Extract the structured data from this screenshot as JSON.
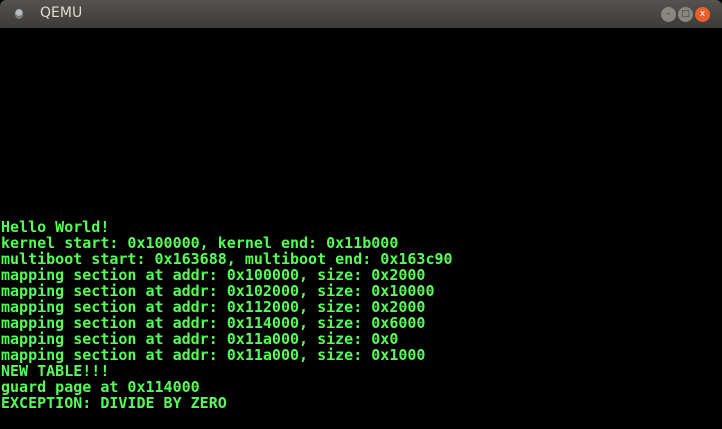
{
  "window": {
    "title": "QEMU",
    "controls": {
      "minimize": "–",
      "maximize": "□",
      "close": "x"
    }
  },
  "colors": {
    "console_text": "#55ff55",
    "background": "#000000",
    "close_button": "#e9602f"
  },
  "console": {
    "lines": [
      "Hello World!",
      "kernel start: 0x100000, kernel end: 0x11b000",
      "multiboot start: 0x163688, multiboot end: 0x163c90",
      "mapping section at addr: 0x100000, size: 0x2000",
      "mapping section at addr: 0x102000, size: 0x10000",
      "mapping section at addr: 0x112000, size: 0x2000",
      "mapping section at addr: 0x114000, size: 0x6000",
      "mapping section at addr: 0x11a000, size: 0x0",
      "mapping section at addr: 0x11a000, size: 0x1000",
      "NEW TABLE!!!",
      "guard page at 0x114000",
      "EXCEPTION: DIVIDE BY ZERO"
    ]
  }
}
